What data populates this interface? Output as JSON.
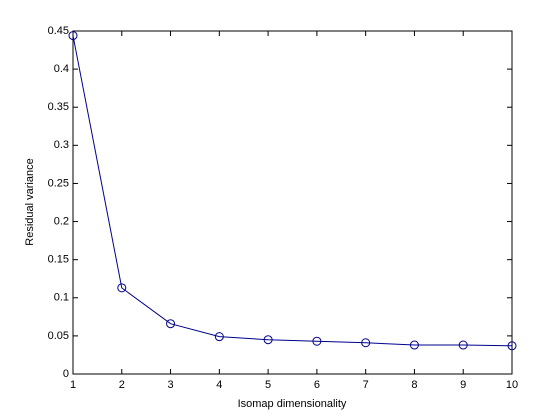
{
  "chart_data": {
    "type": "line",
    "xlabel": "Isomap dimensionality",
    "ylabel": "Residual variance",
    "series": [
      {
        "color": "#00008b",
        "x": [
          1,
          2,
          3,
          4,
          5,
          6,
          7,
          8,
          9,
          10
        ],
        "values": [
          0.444,
          0.113,
          0.066,
          0.049,
          0.045,
          0.043,
          0.041,
          0.038,
          0.038,
          0.037
        ],
        "marker": "circle"
      }
    ],
    "xlim": [
      1,
      10
    ],
    "xticks": [
      1,
      2,
      3,
      4,
      5,
      6,
      7,
      8,
      9,
      10
    ],
    "ylim": [
      0,
      0.45
    ],
    "yticks": [
      0,
      0.05,
      0.1,
      0.15,
      0.2,
      0.25,
      0.3,
      0.35,
      0.4,
      0.45
    ],
    "grid": false
  }
}
